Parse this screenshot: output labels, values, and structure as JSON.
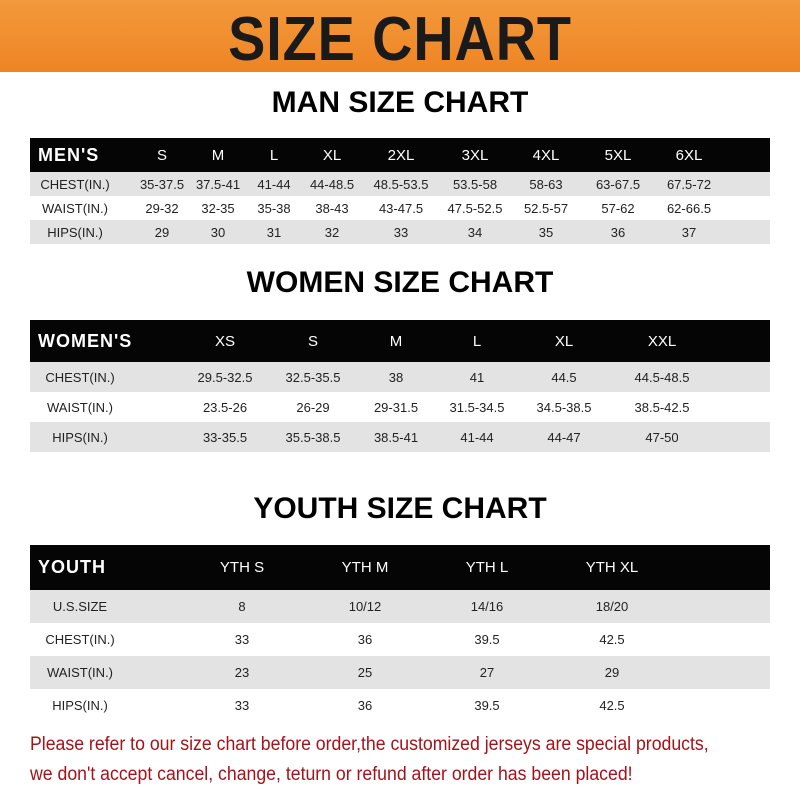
{
  "banner_title": "SIZE CHART",
  "men": {
    "title": "MAN SIZE CHART",
    "header": [
      "MEN'S",
      "S",
      "M",
      "L",
      "XL",
      "2XL",
      "3XL",
      "4XL",
      "5XL",
      "6XL"
    ],
    "rows": [
      [
        "CHEST(IN.)",
        "35-37.5",
        "37.5-41",
        "41-44",
        "44-48.5",
        "48.5-53.5",
        "53.5-58",
        "58-63",
        "63-67.5",
        "67.5-72"
      ],
      [
        "WAIST(IN.)",
        "29-32",
        "32-35",
        "35-38",
        "38-43",
        "43-47.5",
        "47.5-52.5",
        "52.5-57",
        "57-62",
        "62-66.5"
      ],
      [
        "HIPS(IN.)",
        "29",
        "30",
        "31",
        "32",
        "33",
        "34",
        "35",
        "36",
        "37"
      ]
    ]
  },
  "women": {
    "title": "WOMEN SIZE CHART",
    "header": [
      "WOMEN'S",
      "XS",
      "S",
      "M",
      "L",
      "XL",
      "XXL"
    ],
    "rows": [
      [
        "CHEST(IN.)",
        "29.5-32.5",
        "32.5-35.5",
        "38",
        "41",
        "44.5",
        "44.5-48.5"
      ],
      [
        "WAIST(IN.)",
        "23.5-26",
        "26-29",
        "29-31.5",
        "31.5-34.5",
        "34.5-38.5",
        "38.5-42.5"
      ],
      [
        "HIPS(IN.)",
        "33-35.5",
        "35.5-38.5",
        "38.5-41",
        "41-44",
        "44-47",
        "47-50"
      ]
    ]
  },
  "youth": {
    "title": "YOUTH SIZE CHART",
    "header": [
      "YOUTH",
      "YTH S",
      "YTH M",
      "YTH L",
      "YTH XL"
    ],
    "rows": [
      [
        "U.S.SIZE",
        "8",
        "10/12",
        "14/16",
        "18/20"
      ],
      [
        "CHEST(IN.)",
        "33",
        "36",
        "39.5",
        "42.5"
      ],
      [
        "WAIST(IN.)",
        "23",
        "25",
        "27",
        "29"
      ],
      [
        "HIPS(IN.)",
        "33",
        "36",
        "39.5",
        "42.5"
      ]
    ]
  },
  "notice": [
    "Please refer to our size chart before order,the customized jerseys are special products,",
    "we don't accept cancel, change, teturn or refund after order has been placed!"
  ],
  "colors": {
    "banner": "#ee8424",
    "header_row": "#050505",
    "stripe": "#e3e3e3",
    "notice": "#a0141a"
  }
}
